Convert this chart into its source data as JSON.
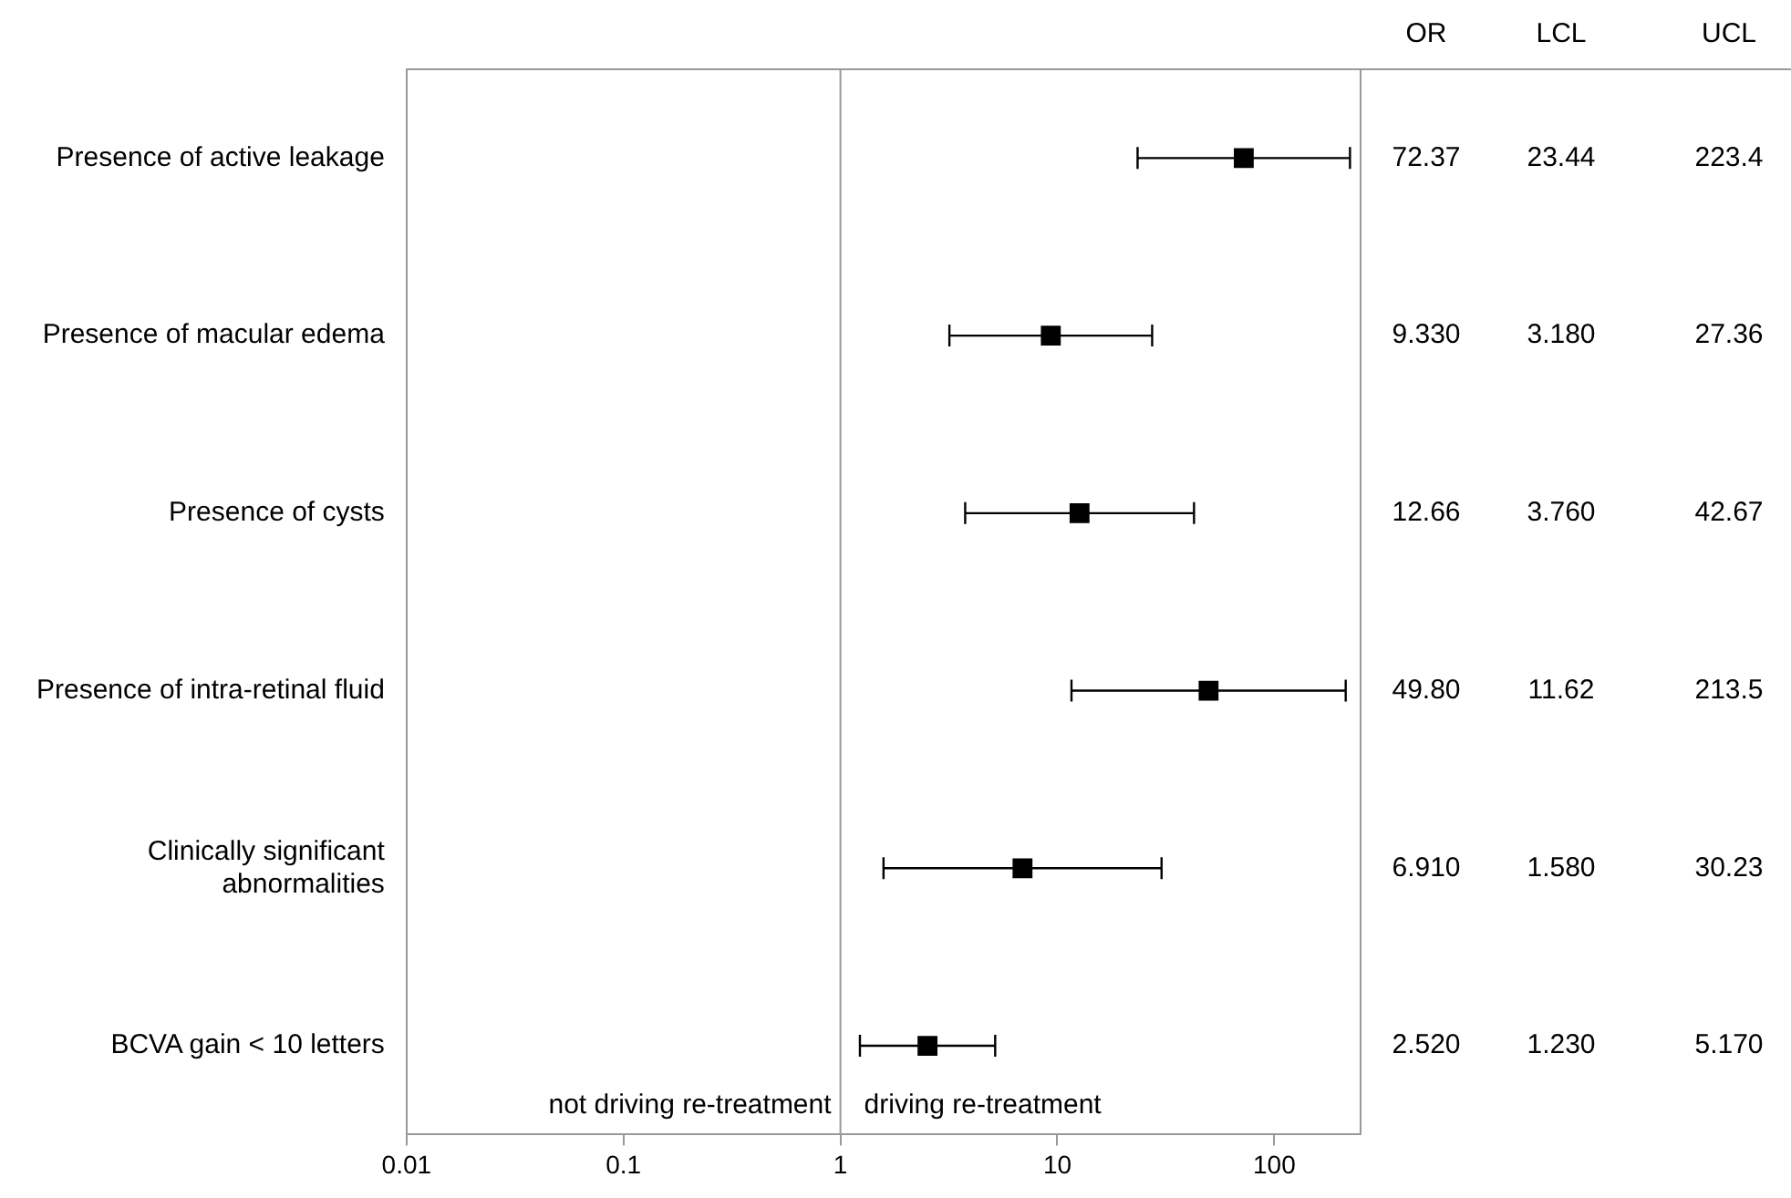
{
  "chart_data": {
    "type": "scatter",
    "orientation": "horizontal",
    "marker": "square",
    "color": "#000000",
    "log": "x",
    "grid": false,
    "legend": false,
    "categories": [
      "Presence of active leakage",
      "Presence of macular edema",
      "Presence of cysts",
      "Presence of intra-retinal fluid",
      "Clinically significant abnormalities",
      "BCVA gain < 10 letters"
    ],
    "values": [
      72.37,
      9.33,
      12.66,
      49.8,
      6.91,
      2.52
    ],
    "errors": [
      [
        23.44,
        223.4
      ],
      [
        3.18,
        27.36
      ],
      [
        3.76,
        42.67
      ],
      [
        11.62,
        213.5
      ],
      [
        1.58,
        30.23
      ],
      [
        1.23,
        5.17
      ]
    ],
    "value_labels": [
      "72.37",
      "9.330",
      "12.66",
      "49.80",
      "6.910",
      "2.520"
    ],
    "xlim": [
      0.01,
      250
    ],
    "xticks": [
      0.01,
      0.1,
      1,
      10,
      100
    ],
    "ref_lines": [
      {
        "axis": "x",
        "value": 1,
        "color": "#999999"
      }
    ],
    "annotations": [
      "OR",
      "LCL",
      "UCL",
      "not driving re-treatment",
      "driving re-treatment",
      "23.44",
      "223.4",
      "3.180",
      "27.36",
      "3.760",
      "42.67",
      "11.62",
      "213.5",
      "1.580",
      "30.23",
      "1.230",
      "5.170"
    ]
  }
}
